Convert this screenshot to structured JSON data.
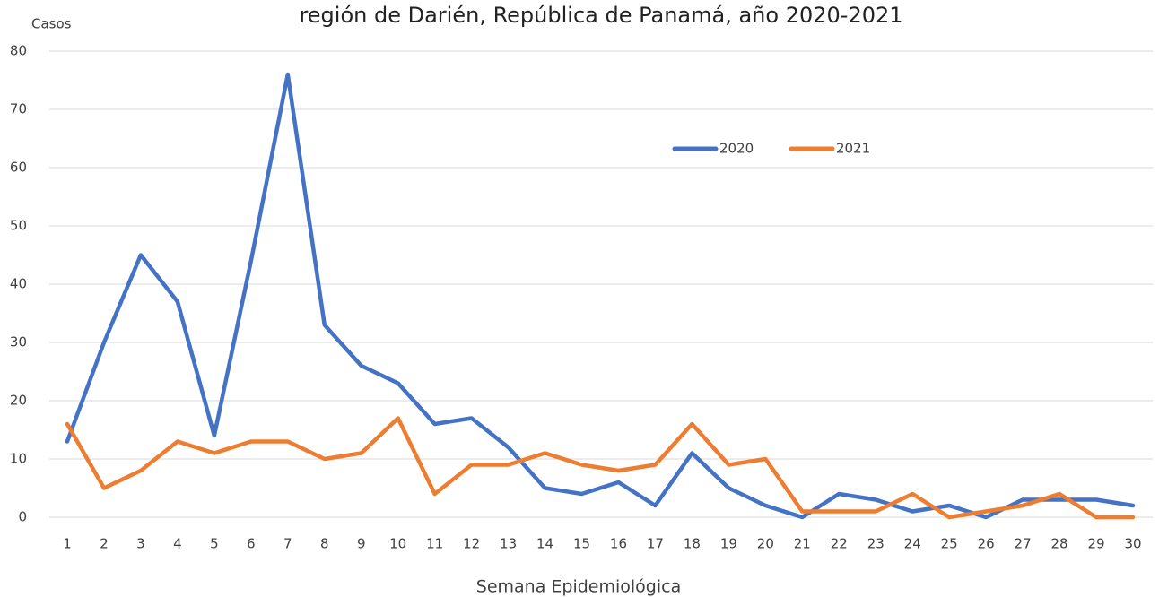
{
  "chart_data": {
    "type": "line",
    "title": "región de Darién, República de Panamá, año 2020-2021",
    "y_label": "Casos",
    "x_label": "Semana Epidemiológica",
    "categories": [
      "1",
      "2",
      "3",
      "4",
      "5",
      "6",
      "7",
      "8",
      "9",
      "10",
      "11",
      "12",
      "13",
      "14",
      "15",
      "16",
      "17",
      "18",
      "19",
      "20",
      "21",
      "22",
      "23",
      "24",
      "25",
      "26",
      "27",
      "28",
      "29",
      "30"
    ],
    "series": [
      {
        "name": "2020",
        "color": "#4472c4",
        "values": [
          13,
          30,
          45,
          37,
          14,
          44,
          76,
          33,
          26,
          23,
          16,
          17,
          12,
          5,
          4,
          6,
          2,
          11,
          5,
          2,
          0,
          4,
          3,
          1,
          2,
          0,
          3,
          3,
          3,
          2
        ]
      },
      {
        "name": "2021",
        "color": "#ed7d31",
        "values": [
          16,
          5,
          8,
          13,
          11,
          13,
          13,
          10,
          11,
          17,
          4,
          9,
          9,
          11,
          9,
          8,
          9,
          16,
          9,
          10,
          1,
          1,
          1,
          4,
          0,
          1,
          2,
          4,
          0,
          0
        ]
      }
    ],
    "ylim": [
      0,
      80
    ],
    "yticks": [
      0,
      10,
      20,
      30,
      40,
      50,
      60,
      70,
      80
    ],
    "grid": true,
    "legend": "top-right"
  }
}
